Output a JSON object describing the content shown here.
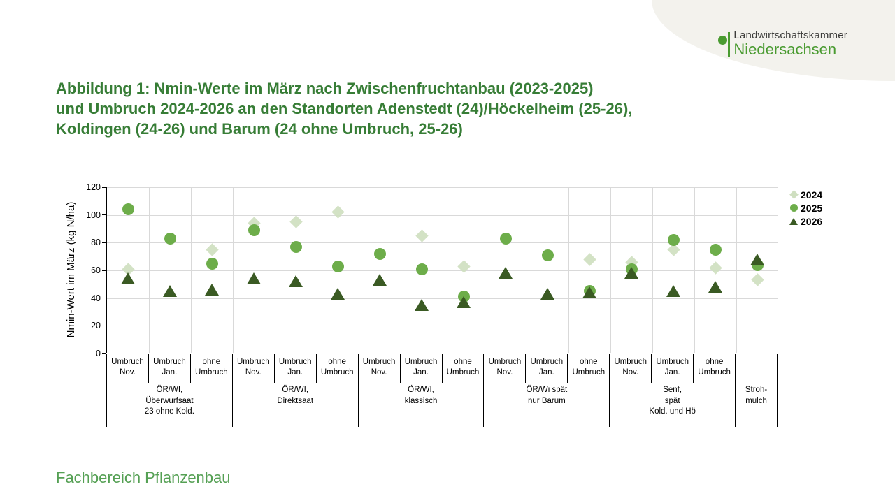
{
  "header": {
    "logo": {
      "line1": "Landwirtschaftskammer",
      "line2": "Niedersachsen"
    }
  },
  "title": "Abbildung 1: Nmin-Werte im März nach Zwischenfruchtanbau (2023-2025)\nund Umbruch 2024-2026 an den Standorten Adenstedt (24)/Höckelheim (25-26),\nKoldingen (24-26) und Barum (24 ohne Umbruch, 25-26)",
  "footer": "Fachbereich Pflanzenbau",
  "colors": {
    "title_green": "#377d36",
    "footer_green": "#55a054",
    "logo_green": "#4a9b31",
    "logo_gray": "#3d3d3b",
    "corner_blob": "#f3f2ed",
    "gridline": "#d9d9d9",
    "axis": "#000000"
  },
  "chart_data": {
    "type": "scatter",
    "title": "Nmin-Werte im März nach Zwischenfruchtanbau und Umbruch",
    "xlabel": "",
    "ylabel": "Nmin-Wert im März  (kg N/ha)",
    "ylim": [
      0,
      120
    ],
    "yticks": [
      0,
      20,
      40,
      60,
      80,
      100,
      120
    ],
    "grid": true,
    "legend_position": "right",
    "groups": [
      {
        "label": "ÖR/WI,\nÜberwurfsaat\n23 ohne Kold.",
        "columns": [
          "Umbruch\nNov.",
          "Umbruch\nJan.",
          "ohne\nUmbruch"
        ]
      },
      {
        "label": "ÖR/WI,\nDirektsaat",
        "columns": [
          "Umbruch\nNov.",
          "Umbruch\nJan.",
          "ohne\nUmbruch"
        ]
      },
      {
        "label": "ÖR/WI,\nklassisch",
        "columns": [
          "Umbruch\nNov.",
          "Umbruch\nJan.",
          "ohne\nUmbruch"
        ]
      },
      {
        "label": "ÖR/Wi spät\nnur Barum",
        "columns": [
          "Umbruch\nNov.",
          "Umbruch\nJan.",
          "ohne\nUmbruch"
        ]
      },
      {
        "label": "Senf,\nspät\nKold. und Hö",
        "columns": [
          "Umbruch\nNov.",
          "Umbruch\nJan.",
          "ohne\nUmbruch"
        ]
      },
      {
        "label": "Stroh-\nmulch",
        "columns": [
          ""
        ]
      }
    ],
    "series": [
      {
        "name": "2024",
        "marker": "diamond",
        "color": "#cfdfc0",
        "values": [
          61,
          null,
          75,
          94,
          95,
          102,
          null,
          85,
          63,
          null,
          null,
          68,
          66,
          75,
          62,
          53
        ]
      },
      {
        "name": "2025",
        "marker": "circle",
        "color": "#6dad4a",
        "values": [
          104,
          83,
          65,
          89,
          77,
          63,
          72,
          61,
          41,
          83,
          71,
          45,
          61,
          82,
          75,
          64
        ]
      },
      {
        "name": "2026",
        "marker": "triangle",
        "color": "#3a5a23",
        "values": [
          54,
          45,
          46,
          54,
          52,
          43,
          53,
          35,
          37,
          58,
          43,
          44,
          58,
          45,
          48,
          68
        ]
      }
    ]
  }
}
